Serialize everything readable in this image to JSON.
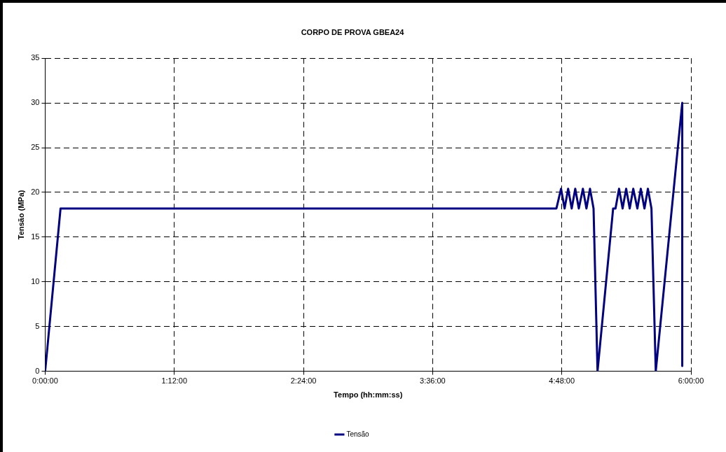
{
  "chart_data": {
    "type": "line",
    "title": "CORPO DE PROVA GBEA24",
    "xlabel": "Tempo (hh:mm:ss)",
    "ylabel": "Tensão (MPa)",
    "xlim": [
      0,
      6
    ],
    "xticks": [
      {
        "value": 0,
        "label": "0:00:00"
      },
      {
        "value": 1.2,
        "label": "1:12:00"
      },
      {
        "value": 2.4,
        "label": "2:24:00"
      },
      {
        "value": 3.6,
        "label": "3:36:00"
      },
      {
        "value": 4.8,
        "label": "4:48:00"
      },
      {
        "value": 6,
        "label": "6:00:00"
      }
    ],
    "ylim": [
      0,
      35
    ],
    "yticks": [
      0,
      5,
      10,
      15,
      20,
      25,
      30,
      35
    ],
    "grid": true,
    "legend": "bottom",
    "marker": "none",
    "line_style": "solid",
    "series": [
      {
        "name": "Tensão",
        "color": "#000080",
        "x": [
          0,
          0.143,
          4.75,
          4.793,
          4.826,
          4.859,
          4.892,
          4.925,
          4.958,
          4.996,
          5.029,
          5.062,
          5.095,
          5.132,
          5.277,
          5.299,
          5.332,
          5.365,
          5.398,
          5.431,
          5.464,
          5.502,
          5.534,
          5.568,
          5.6,
          5.633,
          5.673,
          5.919,
          5.919
        ],
        "values": [
          0,
          18.2,
          18.2,
          20.4,
          18.2,
          20.4,
          18.2,
          20.4,
          18.2,
          20.4,
          18.2,
          20.4,
          18.2,
          0,
          18.2,
          18.2,
          20.4,
          18.2,
          20.4,
          18.2,
          20.4,
          18.2,
          20.4,
          18.2,
          20.4,
          18.2,
          0,
          30,
          0.6
        ]
      }
    ]
  }
}
